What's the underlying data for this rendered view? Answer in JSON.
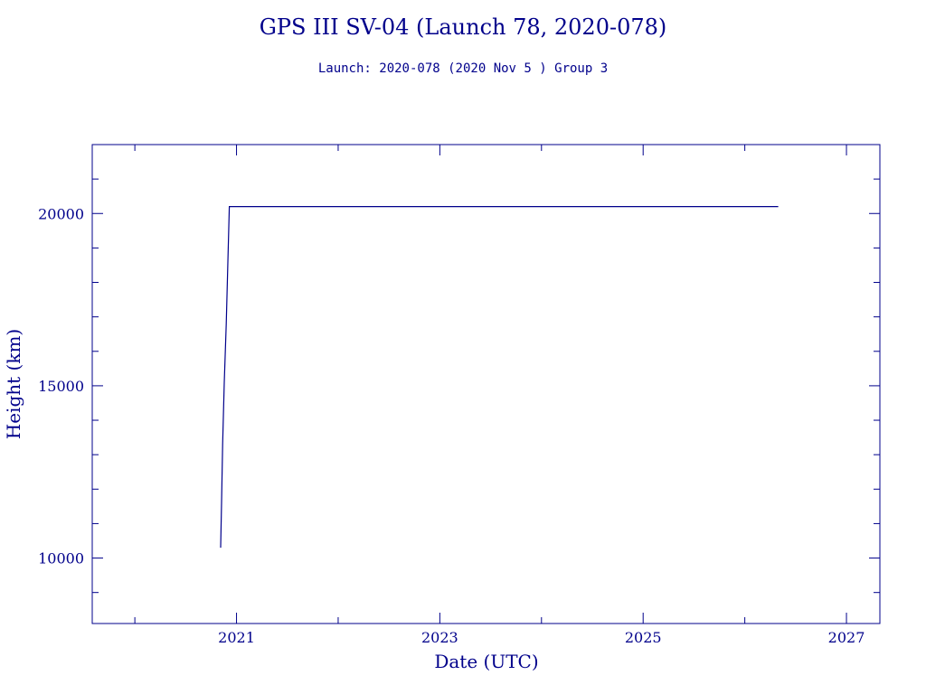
{
  "chart_data": {
    "type": "line",
    "title": "GPS III SV-04 (Launch 78, 2020-078)",
    "subtitle": "Launch: 2020-078  (2020 Nov  5 )  Group 3",
    "xlabel": "Date (UTC)",
    "ylabel": "Height (km)",
    "xlim": [
      "2019-08-01",
      "2027-05-01"
    ],
    "ylim": [
      8100,
      22000
    ],
    "x_ticks": [
      "2021",
      "2023",
      "2025",
      "2027"
    ],
    "y_ticks": [
      10000,
      15000,
      20000
    ],
    "grid": false,
    "series": [
      {
        "points": [
          {
            "date": "2020-11-05",
            "height": 10300
          },
          {
            "date": "2020-11-08",
            "height": 11600
          },
          {
            "date": "2020-11-12",
            "height": 13300
          },
          {
            "date": "2020-11-18",
            "height": 15100
          },
          {
            "date": "2020-11-25",
            "height": 16800
          },
          {
            "date": "2020-12-01",
            "height": 18600
          },
          {
            "date": "2020-12-06",
            "height": 20200
          },
          {
            "date": "2026-05-01",
            "height": 20200
          }
        ]
      }
    ]
  },
  "colors": {
    "ink": "#00008b"
  }
}
